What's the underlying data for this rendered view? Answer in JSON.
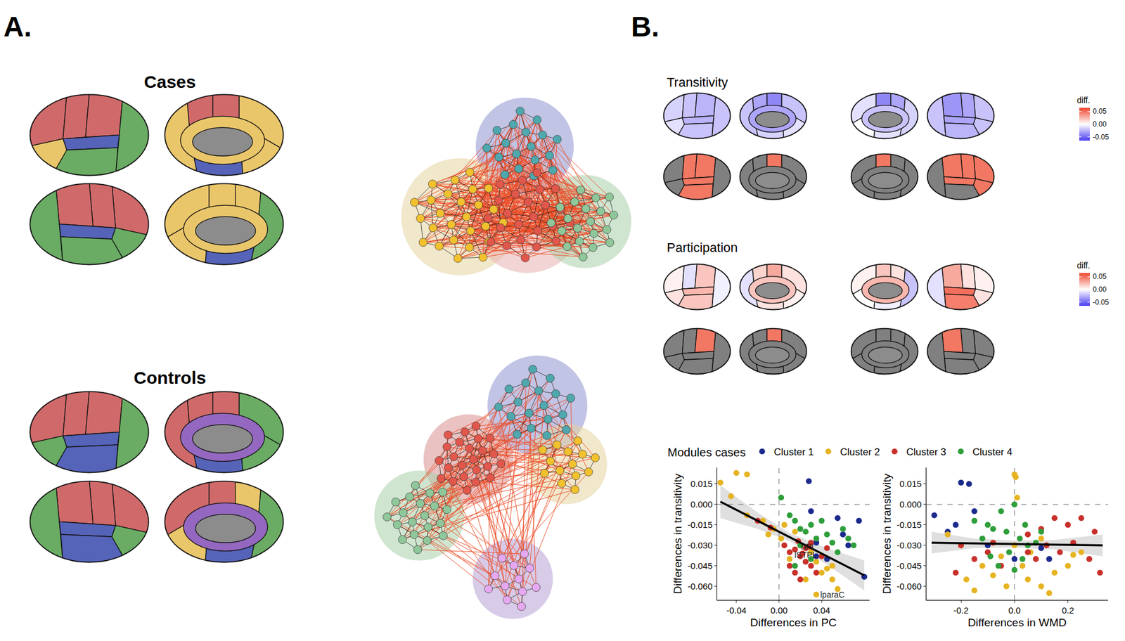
{
  "panel_labels": [
    "A.",
    "B."
  ],
  "groups": [
    {
      "title": "Cases",
      "brains": [
        [
          "#d06a6a",
          "#d06a6a",
          "#d06a6a",
          "#6aac64",
          "#eac66b",
          "#5563b8",
          "#6aac64"
        ],
        [
          "#eac66b",
          "#d06a6a",
          "#d06a6a",
          "#eac66b",
          "#eac66b",
          "#5563b8",
          "#eac66b"
        ],
        [
          "#d06a6a",
          "#d06a6a",
          "#d06a6a",
          "#6aac64",
          "#6aac64",
          "#5563b8",
          "#6aac64"
        ],
        [
          "#eac66b",
          "#eac66b",
          "#eac66b",
          "#6aac64",
          "#eac66b",
          "#5563b8",
          "#eac66b"
        ]
      ],
      "network": {
        "modules": [
          {
            "hull": "#8f93cf",
            "node": "#4fa8ad",
            "nodes": 18
          },
          {
            "hull": "#e6d3a0",
            "node": "#f2c12e",
            "nodes": 26
          },
          {
            "hull": "#e8b0b0",
            "node": "#e2574c",
            "nodes": 24
          },
          {
            "hull": "#a9cfa9",
            "node": "#8fc79a",
            "nodes": 20
          }
        ]
      }
    },
    {
      "title": "Controls",
      "brains": [
        [
          "#d06a6a",
          "#d06a6a",
          "#d06a6a",
          "#6aac64",
          "#6aac64",
          "#5563b8",
          "#5563b8"
        ],
        [
          "#6aac64",
          "#d06a6a",
          "#d06a6a",
          "#d06a6a",
          "#6aac64",
          "#5563b8",
          "#9468c0"
        ],
        [
          "#d06a6a",
          "#d06a6a",
          "#d06a6a",
          "#6aac64",
          "#6aac64",
          "#5563b8",
          "#5563b8"
        ],
        [
          "#d06a6a",
          "#d06a6a",
          "#eac66b",
          "#6aac64",
          "#eac66b",
          "#5563b8",
          "#9468c0"
        ]
      ],
      "network": {
        "modules": [
          {
            "hull": "#8f93cf",
            "node": "#4fa8ad",
            "nodes": 18
          },
          {
            "hull": "#e6d3a0",
            "node": "#f2c12e",
            "nodes": 14
          },
          {
            "hull": "#d89090",
            "node": "#e2574c",
            "nodes": 24
          },
          {
            "hull": "#a9cfa9",
            "node": "#8fc79a",
            "nodes": 20
          },
          {
            "hull": "#b7a0d6",
            "node": "#e6a8f0",
            "nodes": 12
          }
        ]
      }
    }
  ],
  "maps": [
    {
      "title": "Transitivity",
      "colorbar": {
        "title": "diff.",
        "range": [
          -0.065,
          0.065
        ],
        "ticks": [
          0.05,
          {
            "value": 0,
            "label": "0.00"
          },
          -0.05
        ],
        "colors": [
          "#4b3cf0",
          "#ffffff",
          "#f0442c"
        ]
      },
      "values": [
        [
          -0.015,
          -0.02,
          -0.025,
          -0.02,
          -0.01,
          -0.025,
          -0.02
        ],
        [
          -0.02,
          -0.04,
          -0.03,
          -0.02,
          -0.01,
          -0.015,
          -0.03
        ],
        [
          -0.01,
          -0.04,
          -0.03,
          -0.015,
          0,
          -0.01,
          -0.02
        ],
        [
          -0.02,
          -0.03,
          -0.035,
          -0.02,
          -0.02,
          -0.03,
          -0.025
        ]
      ],
      "significant": [
        [
          false,
          true,
          true,
          false,
          false,
          true,
          true
        ],
        [
          false,
          true,
          false,
          false,
          false,
          false,
          false
        ],
        [
          false,
          true,
          false,
          false,
          false,
          false,
          false
        ],
        [
          true,
          true,
          true,
          false,
          true,
          true,
          false
        ]
      ],
      "significant_color": "#f27863",
      "other_color": "#808080"
    },
    {
      "title": "Participation",
      "colorbar": {
        "title": "diff.",
        "range": [
          -0.065,
          0.065
        ],
        "ticks": [
          0.05,
          {
            "value": 0,
            "label": "0.00"
          },
          -0.05
        ],
        "colors": [
          "#4b3cf0",
          "#ffffff",
          "#f0442c"
        ]
      },
      "values": [
        [
          0.005,
          -0.01,
          0.02,
          -0.005,
          0.01,
          0.025,
          0.02
        ],
        [
          0.01,
          0.03,
          0.015,
          -0.01,
          0.005,
          0.01,
          0.02
        ],
        [
          0.005,
          0.02,
          0.01,
          -0.02,
          0,
          -0.005,
          0.025
        ],
        [
          0.005,
          0.01,
          0.03,
          -0.01,
          0.01,
          0.05,
          0.045
        ]
      ],
      "significant": [
        [
          false,
          false,
          true,
          false,
          false,
          false,
          false
        ],
        [
          false,
          true,
          false,
          false,
          false,
          false,
          false
        ],
        [
          false,
          false,
          false,
          false,
          false,
          false,
          false
        ],
        [
          false,
          false,
          true,
          false,
          false,
          false,
          false
        ]
      ],
      "significant_color": "#f27863",
      "other_color": "#808080"
    }
  ],
  "chart_data": [
    {
      "type": "scatter",
      "x_label": "Differences in PC",
      "y_label": "Differences in transitivity",
      "legend": "top",
      "legend_title": "Modules cases",
      "grid": false,
      "xlim": [
        -0.058,
        0.085
      ],
      "xticks": [
        -0.04,
        {
          "value": 0,
          "label": "0.00"
        },
        0.04
      ],
      "ylim": [
        -0.07,
        0.027
      ],
      "yticks": [
        0.015,
        {
          "value": 0,
          "label": "0.000"
        },
        -0.015,
        {
          "value": -0.03,
          "label": "-0.030"
        },
        -0.045,
        {
          "value": -0.06,
          "label": "-0.060"
        }
      ],
      "ref_x": 0,
      "ref_y": 0,
      "fit": {
        "x": [
          -0.055,
          -0.02,
          0.01,
          0.045,
          0.08
        ],
        "values": [
          0.002,
          -0.012,
          -0.024,
          -0.038,
          -0.052
        ],
        "lower": [
          -0.01,
          -0.018,
          -0.027,
          -0.044,
          -0.063
        ],
        "upper": [
          0.014,
          -0.006,
          -0.021,
          -0.032,
          -0.041
        ]
      },
      "series": [
        {
          "name": "Cluster 1",
          "color": "#1b2a8c",
          "x": [
            0.028,
            0.03,
            0.055,
            0.075,
            0.06,
            0.065,
            0.035,
            0.045,
            0.08,
            0.035
          ],
          "values": [
            0.017,
            -0.005,
            -0.01,
            -0.012,
            -0.022,
            -0.03,
            -0.038,
            -0.04,
            -0.053,
            -0.028
          ]
        },
        {
          "name": "Cluster 2",
          "color": "#e6b422",
          "x": [
            -0.055,
            -0.04,
            -0.03,
            -0.045,
            -0.03,
            -0.015,
            -0.005,
            -0.01,
            0.002,
            0.005,
            0.015,
            0.02,
            0.03,
            0.035,
            0.045,
            0.05,
            0.025,
            0.055,
            0.035,
            0.04,
            0.05,
            0.01
          ],
          "values": [
            0.016,
            0.023,
            0.022,
            0.006,
            -0.008,
            -0.012,
            -0.018,
            -0.022,
            -0.025,
            -0.015,
            -0.02,
            -0.03,
            -0.035,
            -0.042,
            -0.047,
            -0.055,
            -0.055,
            -0.062,
            -0.066,
            -0.05,
            -0.045,
            -0.04
          ]
        },
        {
          "name": "Cluster 3",
          "color": "#c8302a",
          "x": [
            -0.02,
            -0.008,
            0.005,
            0.01,
            0.015,
            0.02,
            0.025,
            0.03,
            0.035,
            0.015,
            0.02,
            0.025,
            0.03,
            0.028,
            0.04,
            0.045,
            0.01,
            0.018,
            0.022
          ],
          "values": [
            -0.012,
            -0.017,
            -0.03,
            -0.035,
            -0.033,
            -0.038,
            -0.042,
            -0.045,
            -0.05,
            -0.05,
            -0.055,
            -0.032,
            -0.028,
            -0.031,
            -0.038,
            -0.032,
            -0.045,
            -0.027,
            -0.036
          ]
        },
        {
          "name": "Cluster 4",
          "color": "#2e9e3a",
          "x": [
            0.002,
            0.01,
            0.015,
            0.02,
            0.025,
            0.03,
            0.04,
            0.06,
            0.065,
            0.07,
            0.045,
            0.05,
            0.035,
            0.02,
            0.015,
            0.03,
            0.055
          ],
          "values": [
            0.005,
            -0.008,
            -0.012,
            -0.018,
            -0.02,
            -0.015,
            -0.012,
            -0.018,
            -0.025,
            -0.03,
            -0.022,
            -0.028,
            -0.025,
            -0.03,
            -0.045,
            -0.04,
            -0.035
          ]
        }
      ],
      "annotations": [
        {
          "text": "rIPL",
          "x": 0.028,
          "y": -0.031
        },
        {
          "text": "lSTPL",
          "x": 0.025,
          "y": -0.037
        },
        {
          "text": "lparaC",
          "x": 0.05,
          "y": -0.066
        }
      ]
    },
    {
      "type": "scatter",
      "x_label": "Differences in WMD",
      "y_label": "Differences in transitivity",
      "grid": false,
      "xlim": [
        -0.33,
        0.35
      ],
      "xticks": [
        -0.2,
        {
          "value": 0,
          "label": "0.0"
        },
        0.2
      ],
      "ylim": [
        -0.07,
        0.027
      ],
      "yticks": [
        0.015,
        {
          "value": 0,
          "label": "0.000"
        },
        -0.015,
        {
          "value": -0.03,
          "label": "-0.030"
        },
        -0.045,
        {
          "value": -0.06,
          "label": "-0.060"
        }
      ],
      "ref_x": 0,
      "ref_y": 0,
      "fit": {
        "x": [
          -0.31,
          -0.15,
          0,
          0.15,
          0.33
        ],
        "values": [
          -0.028,
          -0.0285,
          -0.029,
          -0.0295,
          -0.03
        ],
        "lower": [
          -0.036,
          -0.032,
          -0.0315,
          -0.033,
          -0.038
        ],
        "upper": [
          -0.02,
          -0.025,
          -0.0265,
          -0.026,
          -0.022
        ]
      },
      "series": [
        {
          "name": "Cluster 1",
          "color": "#1b2a8c",
          "x": [
            -0.3,
            -0.22,
            -0.2,
            -0.17,
            -0.15,
            -0.25,
            -0.1,
            0,
            0.1,
            0.13
          ],
          "values": [
            -0.008,
            -0.015,
            0.016,
            0.015,
            -0.005,
            -0.02,
            -0.03,
            -0.04,
            -0.032,
            -0.04
          ]
        },
        {
          "name": "Cluster 2",
          "color": "#e6b422",
          "x": [
            0,
            0.005,
            0.01,
            -0.25,
            -0.2,
            -0.18,
            -0.15,
            -0.12,
            -0.08,
            -0.05,
            0,
            0.03,
            0.05,
            0.1,
            0.13,
            0.15,
            0.2,
            0.22,
            0.25,
            0.1,
            -0.03,
            0.06
          ],
          "values": [
            0.022,
            0.02,
            0.005,
            -0.022,
            -0.03,
            -0.055,
            -0.063,
            -0.045,
            -0.052,
            -0.038,
            -0.03,
            -0.045,
            -0.055,
            -0.06,
            -0.065,
            -0.05,
            -0.045,
            -0.037,
            -0.035,
            -0.025,
            -0.06,
            -0.035
          ]
        },
        {
          "name": "Cluster 3",
          "color": "#c8302a",
          "x": [
            0.25,
            0.2,
            0.15,
            0.1,
            0.05,
            0.3,
            0.28,
            0.32,
            0.22,
            0.17,
            -0.2,
            -0.15,
            -0.1,
            -0.05,
            -0.22,
            0.08,
            0.12,
            0.05,
            -0.08
          ],
          "values": [
            -0.01,
            -0.015,
            -0.01,
            -0.018,
            -0.022,
            -0.02,
            -0.04,
            -0.05,
            -0.028,
            -0.035,
            -0.03,
            -0.04,
            -0.035,
            -0.045,
            -0.05,
            -0.04,
            -0.03,
            -0.035,
            -0.028
          ]
        },
        {
          "name": "Cluster 4",
          "color": "#2e9e3a",
          "x": [
            -0.05,
            0,
            -0.1,
            -0.08,
            -0.03,
            0.02,
            0.05,
            -0.12,
            -0.02,
            0.03,
            -0.06,
            0,
            0.08,
            0.1,
            -0.15,
            0.04,
            -0.09
          ],
          "values": [
            -0.005,
            0,
            -0.015,
            -0.018,
            -0.02,
            -0.025,
            -0.03,
            -0.025,
            -0.035,
            -0.04,
            -0.045,
            -0.048,
            -0.028,
            -0.02,
            -0.012,
            -0.015,
            -0.038
          ]
        }
      ]
    }
  ]
}
